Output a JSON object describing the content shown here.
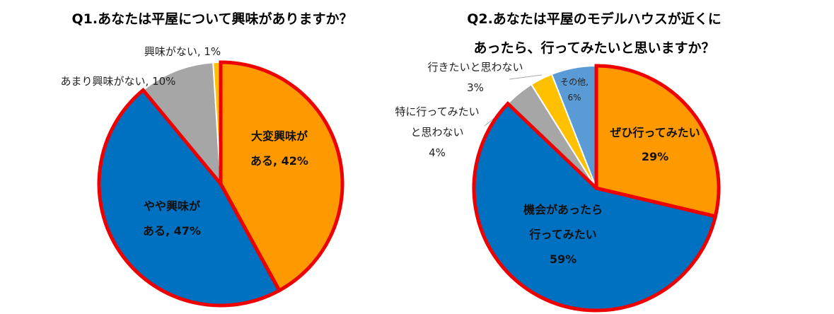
{
  "colors": {
    "orange": "#FF9900",
    "blue": "#0070C0",
    "gray": "#A6A6A6",
    "yellow": "#FFC000",
    "lightblue": "#5B9BD5",
    "highlight": "#EE0000"
  },
  "chart_data": [
    {
      "type": "pie",
      "title": "Q1.あなたは平屋について興味がありますか？",
      "slices": [
        {
          "name": "大変興味が ある",
          "value": 42,
          "display": "大変興味が|ある, 42%",
          "color": "#FF9900",
          "highlight": true
        },
        {
          "name": "やや興味が ある",
          "value": 47,
          "display": "やや興味が|ある, 47%",
          "color": "#0070C0",
          "highlight": true
        },
        {
          "name": "あまり興味がない",
          "value": 10,
          "display": "あまり興味がない, 10%",
          "color": "#A6A6A6",
          "highlight": false
        },
        {
          "name": "興味がない",
          "value": 1,
          "display": "興味がない, 1%",
          "color": "#FFC000",
          "highlight": false
        }
      ]
    },
    {
      "type": "pie",
      "title": [
        "Q2.あなたは平屋のモデルハウスが近くに",
        "あったら、行ってみたいと思いますか？"
      ],
      "slices": [
        {
          "name": "ぜひ行ってみたい",
          "value": 29,
          "display": "ぜひ行ってみたい|29%",
          "color": "#FF9900",
          "highlight": true
        },
        {
          "name": "機会があったら 行ってみたい",
          "value": 59,
          "display": "機会があったら|行ってみたい|59%",
          "color": "#0070C0",
          "highlight": true
        },
        {
          "name": "特に行ってみたい と思わない",
          "value": 4,
          "display": "特に行ってみたい|と思わない|4%",
          "color": "#A6A6A6",
          "highlight": false
        },
        {
          "name": "行きたいと思わない",
          "value": 3,
          "display": "行きたいと思わない|3%",
          "color": "#FFC000",
          "highlight": false
        },
        {
          "name": "その他",
          "value": 6,
          "display": "その他,|6%",
          "color": "#5B9BD5",
          "highlight": false
        }
      ]
    }
  ]
}
